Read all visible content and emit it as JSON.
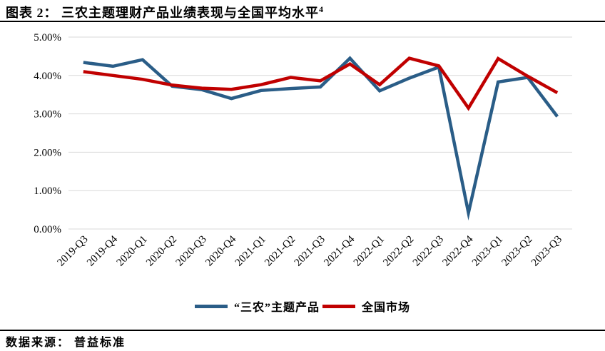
{
  "header": {
    "title": "图表 2： 三农主题理财产品业绩表现与全国平均水平",
    "title_superscript": "4"
  },
  "footer": {
    "source_label": "数据来源： 普益标准"
  },
  "chart_data": {
    "type": "line",
    "title": "三农主题理财产品业绩表现与全国平均水平",
    "categories": [
      "2019-Q3",
      "2019-Q4",
      "2020-Q1",
      "2020-Q2",
      "2020-Q3",
      "2020-Q4",
      "2021-Q1",
      "2021-Q2",
      "2021-Q3",
      "2021-Q4",
      "2022-Q1",
      "2022-Q2",
      "2022-Q3",
      "2022-Q4",
      "2023-Q1",
      "2023-Q2",
      "2023-Q3"
    ],
    "series": [
      {
        "name": "“三农”主题产品",
        "color": "#2A5D87",
        "values": [
          4.34,
          4.24,
          4.41,
          3.72,
          3.63,
          3.4,
          3.61,
          3.66,
          3.7,
          4.45,
          3.6,
          3.93,
          4.22,
          0.42,
          3.83,
          3.95,
          2.93
        ]
      },
      {
        "name": "全国市场",
        "color": "#C00000",
        "values": [
          4.1,
          4.0,
          3.9,
          3.75,
          3.67,
          3.64,
          3.76,
          3.95,
          3.86,
          4.3,
          3.76,
          4.45,
          4.25,
          3.15,
          4.44,
          3.98,
          3.55
        ]
      }
    ],
    "ylim": [
      0,
      5
    ],
    "y_tick_step": 1,
    "y_tick_labels": [
      "0.00%",
      "1.00%",
      "2.00%",
      "3.00%",
      "4.00%",
      "5.00%"
    ],
    "xlabel": "",
    "ylabel": "",
    "grid": true,
    "gridline_color": "#D9D9D9",
    "legend_position": "bottom"
  }
}
